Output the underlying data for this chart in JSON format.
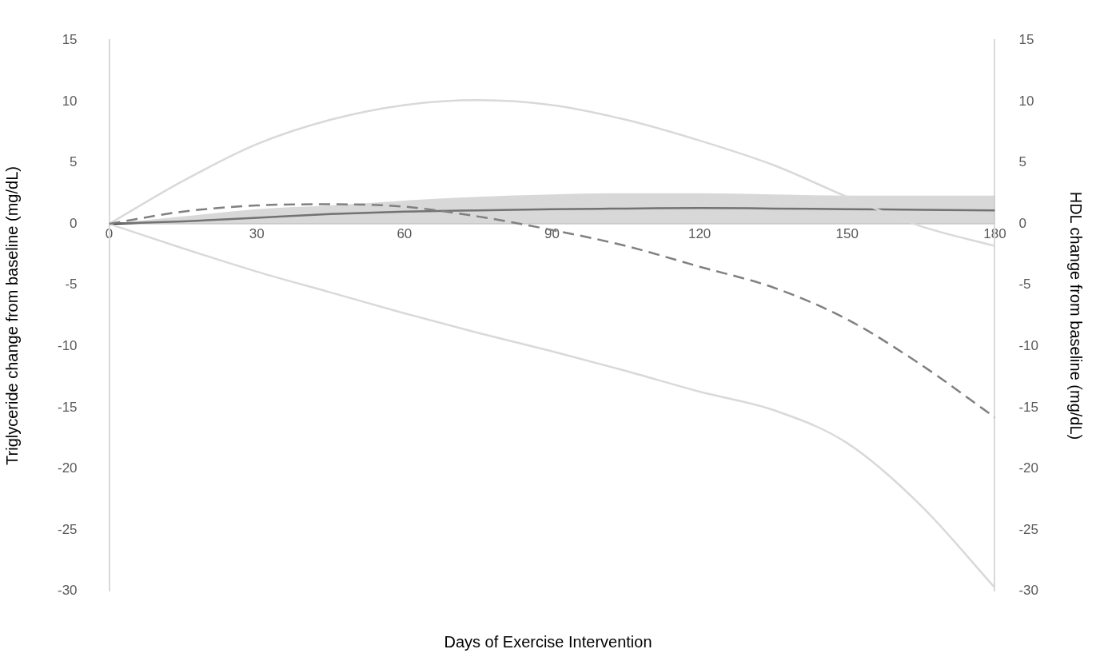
{
  "chart_data": {
    "type": "line",
    "xlabel": "Days of Exercise Intervention",
    "ylabel": "Triglyceride change from baseline (mg/dL)",
    "y2label": "HDL change from baseline (mg/dL)",
    "x": [
      0,
      15,
      30,
      45,
      60,
      75,
      90,
      105,
      120,
      135,
      150,
      165,
      180
    ],
    "series": [
      {
        "color": "#808080",
        "line_style": "dashed",
        "values": [
          0,
          1.0,
          1.5,
          1.6,
          1.4,
          0.6,
          -0.5,
          -1.8,
          -3.5,
          -5.2,
          -7.8,
          -11.5,
          -15.8
        ]
      },
      {
        "color": "#d9d9d9",
        "line_style": "solid",
        "values": [
          0,
          3.5,
          6.5,
          8.5,
          9.7,
          10.1,
          9.7,
          8.5,
          6.8,
          4.8,
          2.2,
          -0.2,
          -1.8
        ]
      },
      {
        "color": "#d9d9d9",
        "line_style": "solid",
        "values": [
          0,
          -2,
          -3.9,
          -5.6,
          -7.3,
          -8.9,
          -10.4,
          -12,
          -13.7,
          -15.2,
          -17.9,
          -23,
          -29.7
        ]
      },
      {
        "color": "#000000",
        "line_style": "solid",
        "values": [
          0,
          0.2,
          0.5,
          0.8,
          1.0,
          1.1,
          1.2,
          1.25,
          1.3,
          1.25,
          1.2,
          1.15,
          1.1
        ],
        "lower": [
          0,
          0,
          0,
          0,
          0,
          0,
          0,
          0,
          0,
          0,
          0,
          0,
          0
        ],
        "upper": [
          0,
          0.6,
          1.2,
          1.5,
          1.9,
          2.2,
          2.4,
          2.5,
          2.5,
          2.4,
          2.3,
          2.3,
          2.3
        ]
      }
    ],
    "xlim": [
      0,
      180
    ],
    "xticks": [
      0,
      30,
      60,
      90,
      120,
      150,
      180
    ],
    "ylim": [
      -30,
      15
    ],
    "yticks": [
      -30,
      -25,
      -20,
      -15,
      -10,
      -5,
      0,
      5,
      10,
      15
    ],
    "y2lim": [
      -30,
      15
    ],
    "y2ticks": [
      -30,
      -25,
      -20,
      -15,
      -10,
      -5,
      0,
      5,
      10,
      15
    ],
    "grid": false,
    "legend": false,
    "marker": "none"
  }
}
